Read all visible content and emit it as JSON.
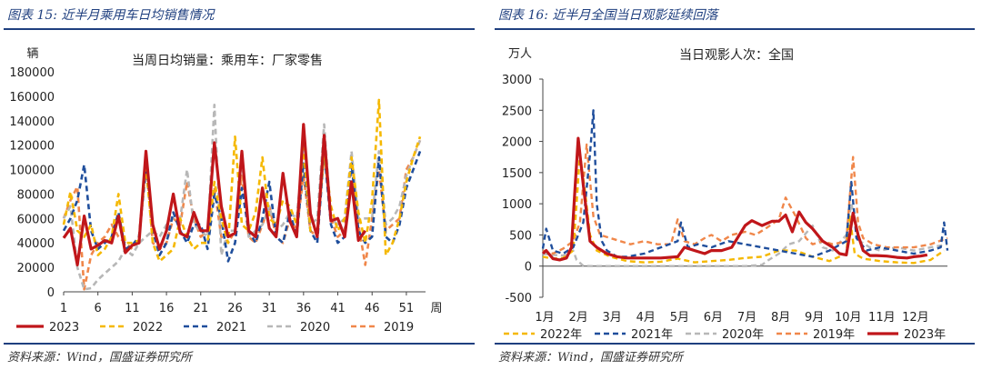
{
  "left_panel": {
    "title": "图表 15:  近半月乘用车日均销售情况",
    "source": "资料来源：Wind，国盛证券研究所"
  },
  "right_panel": {
    "title": "图表 16:  近半月全国当日观影延续回落",
    "source": "资料来源：Wind，国盛证券研究所"
  },
  "chart_data": [
    {
      "type": "line",
      "title": "当周日均销量：乘用车：厂家零售",
      "ylabel": "辆",
      "xlabel": "周",
      "ylim": [
        0,
        180000
      ],
      "yticks": [
        0,
        20000,
        40000,
        60000,
        80000,
        100000,
        120000,
        140000,
        160000,
        180000
      ],
      "xlim": [
        1,
        53
      ],
      "xticks": [
        1,
        6,
        11,
        16,
        21,
        26,
        31,
        36,
        41,
        46,
        51
      ],
      "legend_position": "bottom",
      "series": [
        {
          "name": "2023",
          "color": "#c0161a",
          "dash": "solid",
          "width": 3.2,
          "x": [
            1,
            2,
            3,
            4,
            5,
            6,
            7,
            8,
            9,
            10,
            11,
            12,
            13,
            14,
            15,
            16,
            17,
            18,
            19,
            20,
            21,
            22,
            23,
            24,
            25,
            26,
            27,
            28,
            29,
            30,
            31,
            32,
            33,
            34,
            35,
            36,
            37,
            38,
            39,
            40,
            41,
            42,
            43,
            44,
            45
          ],
          "y": [
            44000,
            52000,
            22000,
            62000,
            35000,
            38000,
            42000,
            40000,
            62000,
            32000,
            38000,
            40000,
            115000,
            55000,
            35000,
            50000,
            80000,
            48000,
            45000,
            65000,
            50000,
            50000,
            122000,
            70000,
            45000,
            48000,
            115000,
            50000,
            45000,
            85000,
            52000,
            45000,
            97000,
            58000,
            45000,
            137000,
            64000,
            45000,
            128000,
            58000,
            60000,
            45000,
            90000,
            42000,
            50000
          ]
        },
        {
          "name": "2022",
          "color": "#f5b800",
          "dash": "6 4",
          "width": 2.6,
          "x": [
            1,
            2,
            3,
            4,
            5,
            6,
            7,
            8,
            9,
            10,
            11,
            12,
            13,
            14,
            15,
            16,
            17,
            18,
            19,
            20,
            21,
            22,
            23,
            24,
            25,
            26,
            27,
            28,
            29,
            30,
            31,
            32,
            33,
            34,
            35,
            36,
            37,
            38,
            39,
            40,
            41,
            42,
            43,
            44,
            45,
            46,
            47,
            48,
            49,
            50,
            51,
            52,
            53
          ],
          "y": [
            55000,
            82000,
            50000,
            45000,
            55000,
            30000,
            35000,
            45000,
            80000,
            40000,
            40000,
            42000,
            105000,
            40000,
            25000,
            30000,
            35000,
            60000,
            45000,
            35000,
            40000,
            40000,
            90000,
            60000,
            40000,
            127000,
            55000,
            50000,
            65000,
            110000,
            60000,
            55000,
            75000,
            70000,
            55000,
            118000,
            50000,
            50000,
            115000,
            70000,
            50000,
            60000,
            110000,
            65000,
            40000,
            75000,
            157000,
            30000,
            40000,
            60000,
            90000,
            110000,
            127000
          ]
        },
        {
          "name": "2021",
          "color": "#1f4e9c",
          "dash": "6 4",
          "width": 2.6,
          "x": [
            1,
            2,
            3,
            4,
            5,
            6,
            7,
            8,
            9,
            10,
            11,
            12,
            13,
            14,
            15,
            16,
            17,
            18,
            19,
            20,
            21,
            22,
            23,
            24,
            25,
            26,
            27,
            28,
            29,
            30,
            31,
            32,
            33,
            34,
            35,
            36,
            37,
            38,
            39,
            40,
            41,
            42,
            43,
            44,
            45,
            46,
            47,
            48,
            49,
            50,
            51,
            52,
            53
          ],
          "y": [
            50000,
            60000,
            75000,
            104000,
            50000,
            35000,
            40000,
            45000,
            65000,
            35000,
            38000,
            45000,
            100000,
            50000,
            30000,
            40000,
            65000,
            50000,
            40000,
            55000,
            55000,
            35000,
            80000,
            60000,
            25000,
            40000,
            85000,
            50000,
            40000,
            60000,
            90000,
            45000,
            40000,
            65000,
            45000,
            105000,
            50000,
            40000,
            115000,
            55000,
            40000,
            45000,
            105000,
            50000,
            40000,
            45000,
            110000,
            45000,
            40000,
            55000,
            85000,
            100000,
            115000
          ]
        },
        {
          "name": "2020",
          "color": "#b7b7b7",
          "dash": "6 4",
          "width": 2.6,
          "x": [
            1,
            2,
            3,
            4,
            5,
            6,
            7,
            8,
            9,
            10,
            11,
            12,
            13,
            14,
            15,
            16,
            17,
            18,
            19,
            20,
            21,
            22,
            23,
            24,
            25,
            26,
            27,
            28,
            29,
            30,
            31,
            32,
            33,
            34,
            35,
            36,
            37,
            38,
            39,
            40,
            41,
            42,
            43,
            44,
            45,
            46,
            47,
            48,
            49,
            50,
            51,
            52,
            53
          ],
          "y": [
            60000,
            70000,
            20000,
            2000,
            3000,
            10000,
            15000,
            20000,
            25000,
            35000,
            30000,
            40000,
            45000,
            50000,
            45000,
            55000,
            60000,
            60000,
            100000,
            55000,
            50000,
            45000,
            153000,
            30000,
            50000,
            50000,
            110000,
            45000,
            50000,
            55000,
            70000,
            50000,
            55000,
            65000,
            60000,
            120000,
            55000,
            60000,
            137000,
            60000,
            55000,
            60000,
            115000,
            60000,
            60000,
            60000,
            115000,
            55000,
            60000,
            70000,
            95000,
            110000,
            124000
          ]
        },
        {
          "name": "2019",
          "color": "#f0874a",
          "dash": "6 4",
          "width": 2.6,
          "x": [
            1,
            2,
            3,
            4,
            5,
            6,
            7,
            8,
            9,
            10,
            11,
            12,
            13,
            14,
            15,
            16,
            17,
            18,
            19,
            20,
            21,
            22,
            23,
            24,
            25,
            26,
            27,
            28,
            29,
            30,
            31,
            32,
            33,
            34,
            35,
            36,
            37,
            38,
            39,
            40,
            41,
            42,
            43,
            44,
            45,
            46,
            47,
            48,
            49,
            50,
            51,
            52,
            53
          ],
          "y": [
            60000,
            75000,
            86000,
            2000,
            30000,
            40000,
            45000,
            55000,
            45000,
            40000,
            35000,
            45000,
            110000,
            40000,
            35000,
            40000,
            60000,
            55000,
            90000,
            60000,
            45000,
            50000,
            85000,
            45000,
            40000,
            50000,
            95000,
            45000,
            40000,
            55000,
            70000,
            45000,
            40000,
            60000,
            50000,
            95000,
            50000,
            45000,
            115000,
            60000,
            45000,
            50000,
            110000,
            55000,
            22000,
            60000,
            100000,
            50000,
            55000,
            60000,
            100000,
            110000,
            124000
          ]
        }
      ]
    },
    {
      "type": "line",
      "title": "当日观影人次：全国",
      "ylabel": "万人",
      "ylim": [
        -500,
        3000
      ],
      "yticks": [
        -500,
        0,
        500,
        1000,
        1500,
        2000,
        2500,
        3000
      ],
      "xlim": [
        1,
        13
      ],
      "xticks": [
        "1月",
        "2月",
        "3月",
        "4月",
        "5月",
        "6月",
        "7月",
        "8月",
        "9月",
        "10月",
        "11月",
        "12月"
      ],
      "legend_position": "bottom",
      "series": [
        {
          "name": "2022年",
          "color": "#f5b800",
          "dash": "6 4",
          "width": 2.4,
          "x": [
            1,
            1.3,
            1.6,
            1.9,
            2.0,
            2.1,
            2.25,
            2.4,
            2.6,
            3.0,
            3.5,
            4.0,
            4.5,
            5.0,
            5.5,
            6.0,
            6.5,
            7.0,
            7.5,
            8.0,
            8.5,
            9.0,
            9.5,
            10.0,
            10.1,
            10.25,
            10.5,
            11.0,
            11.5,
            12.0,
            12.5,
            12.9
          ],
          "y": [
            150,
            120,
            130,
            250,
            1000,
            1800,
            1200,
            500,
            250,
            150,
            80,
            60,
            70,
            120,
            60,
            80,
            100,
            130,
            150,
            250,
            250,
            150,
            80,
            200,
            800,
            200,
            120,
            80,
            60,
            50,
            100,
            250
          ]
        },
        {
          "name": "2021年",
          "color": "#1f4e9c",
          "dash": "6 4",
          "width": 2.4,
          "x": [
            1,
            1.1,
            1.3,
            1.6,
            1.9,
            2.2,
            2.4,
            2.5,
            2.6,
            2.75,
            2.9,
            3.2,
            3.5,
            4.0,
            4.5,
            5.0,
            5.1,
            5.3,
            5.6,
            6.0,
            6.5,
            7.0,
            7.5,
            8.0,
            8.5,
            9.0,
            9.5,
            10.0,
            10.15,
            10.3,
            10.6,
            11.0,
            11.5,
            12.0,
            12.5,
            12.8,
            12.9,
            13.0
          ],
          "y": [
            280,
            600,
            250,
            200,
            300,
            700,
            1800,
            2500,
            1000,
            400,
            250,
            150,
            150,
            200,
            300,
            400,
            700,
            300,
            350,
            300,
            400,
            350,
            300,
            250,
            200,
            150,
            250,
            400,
            1350,
            450,
            250,
            300,
            250,
            200,
            250,
            300,
            700,
            250
          ]
        },
        {
          "name": "2020年",
          "color": "#b7b7b7",
          "dash": "6 4",
          "width": 2.4,
          "x": [
            1,
            1.3,
            1.6,
            1.9,
            2.0,
            2.2,
            2.5,
            3,
            4,
            5,
            6,
            7,
            7.5,
            7.7,
            8,
            8.3,
            8.6,
            9.0,
            9.3,
            9.6,
            10.0,
            10.15,
            10.4,
            10.7,
            11.0,
            11.5,
            12.0,
            12.5,
            13.0
          ],
          "y": [
            200,
            180,
            170,
            250,
            100,
            5,
            0,
            0,
            0,
            0,
            0,
            0,
            20,
            100,
            200,
            350,
            400,
            650,
            300,
            250,
            500,
            1000,
            400,
            300,
            250,
            300,
            250,
            300,
            350
          ]
        },
        {
          "name": "2019年",
          "color": "#f0874a",
          "dash": "6 4",
          "width": 2.4,
          "x": [
            1,
            1.3,
            1.6,
            1.9,
            2.1,
            2.3,
            2.5,
            2.7,
            3.0,
            3.3,
            3.6,
            4.0,
            4.4,
            4.8,
            5.0,
            5.2,
            5.5,
            5.8,
            6.0,
            6.3,
            6.6,
            7.0,
            7.3,
            7.6,
            8.0,
            8.2,
            8.5,
            8.8,
            9.0,
            9.3,
            9.6,
            10.0,
            10.1,
            10.2,
            10.35,
            10.5,
            10.8,
            11.2,
            11.6,
            12.0,
            12.5,
            13.0
          ],
          "y": [
            250,
            200,
            280,
            400,
            700,
            1950,
            800,
            500,
            450,
            400,
            350,
            400,
            350,
            350,
            750,
            400,
            350,
            450,
            500,
            400,
            500,
            550,
            500,
            600,
            750,
            1100,
            800,
            450,
            350,
            400,
            350,
            400,
            1100,
            1750,
            700,
            450,
            350,
            300,
            300,
            300,
            350,
            450
          ]
        },
        {
          "name": "2023年",
          "color": "#c0161a",
          "dash": "solid",
          "width": 3.2,
          "x": [
            1,
            1.1,
            1.3,
            1.5,
            1.7,
            1.85,
            1.95,
            2.05,
            2.2,
            2.4,
            2.6,
            2.9,
            3.2,
            3.5,
            4.0,
            4.5,
            5.0,
            5.2,
            5.5,
            5.8,
            6.0,
            6.3,
            6.6,
            7.0,
            7.2,
            7.5,
            7.8,
            8.0,
            8.2,
            8.4,
            8.6,
            8.8,
            9.0,
            9.3,
            9.6,
            9.8,
            10.0,
            10.1,
            10.2,
            10.35,
            10.5,
            10.7,
            10.9,
            11.2,
            11.5,
            11.8,
            12.0,
            12.2,
            12.4
          ],
          "y": [
            200,
            250,
            120,
            100,
            130,
            300,
            1200,
            2050,
            1300,
            400,
            300,
            200,
            150,
            130,
            130,
            130,
            150,
            300,
            250,
            200,
            250,
            250,
            300,
            650,
            730,
            650,
            720,
            720,
            820,
            550,
            870,
            700,
            600,
            400,
            300,
            200,
            180,
            500,
            850,
            500,
            250,
            170,
            170,
            160,
            140,
            130,
            150,
            160,
            180
          ]
        }
      ]
    }
  ]
}
